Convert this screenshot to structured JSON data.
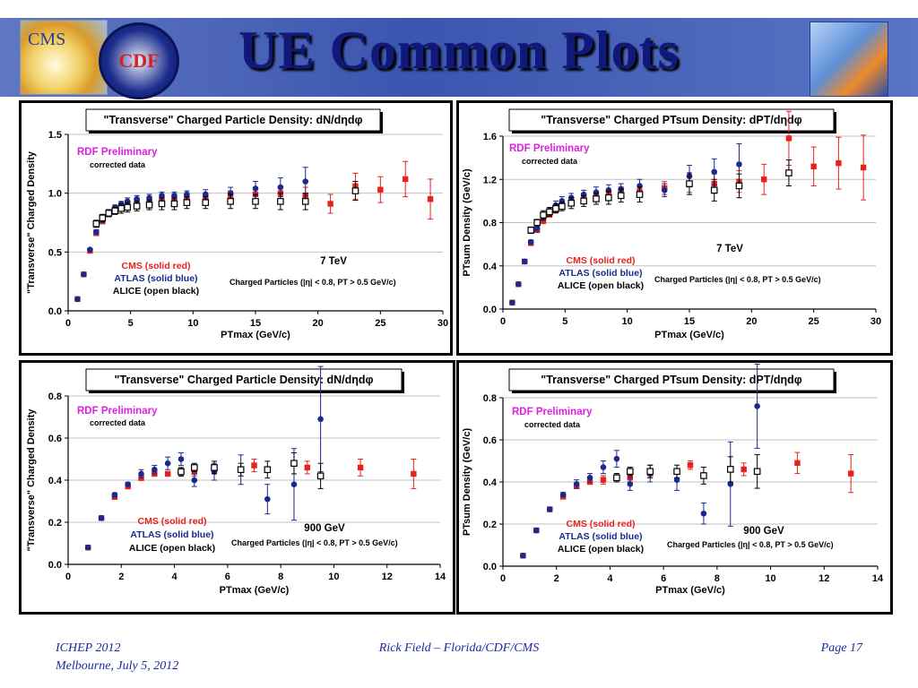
{
  "slide": {
    "title": "UE Common Plots",
    "logos": {
      "cms": "CMS",
      "cdf": "CDF"
    },
    "footer": {
      "left_line1": "ICHEP 2012",
      "left_line2": "Melbourne, July 5, 2012",
      "center": "Rick Field – Florida/CDF/CMS",
      "right": "Page 17"
    }
  },
  "colors": {
    "cms": "#e8211c",
    "atlas": "#1a2a8c",
    "alice": "#000000",
    "rdf": "#e020e0",
    "banner": "#3b55b0",
    "title": "#10197a"
  },
  "chart_data": [
    {
      "type": "scatter",
      "title": "\"Transverse\" Charged Particle Density: dN/dηdφ",
      "xlabel": "PTmax  (GeV/c)",
      "ylabel": "\"Transverse\" Charged Density",
      "xlim": [
        0,
        30
      ],
      "ylim": [
        0,
        1.5
      ],
      "xticks": [
        "0",
        "5",
        "10",
        "15",
        "20",
        "25",
        "30"
      ],
      "yticks": [
        "0.0",
        "0.5",
        "1.0",
        "1.5"
      ],
      "annotations": {
        "rdf": "RDF Preliminary",
        "corrected": "corrected data",
        "energy": "7 TeV",
        "cuts": "Charged Particles (|η| < 0.8, PT > 0.5 GeV/c)"
      },
      "legend": [
        "CMS (solid red)",
        "ATLAS (solid blue)",
        "ALICE (open black)"
      ],
      "series": [
        {
          "name": "CMS",
          "style": "red-square",
          "x": [
            0.75,
            1.25,
            1.75,
            2.25,
            2.75,
            3.25,
            3.75,
            4.25,
            4.75,
            5.5,
            6.5,
            7.5,
            8.5,
            9.5,
            11,
            13,
            15,
            17,
            19,
            21,
            23,
            25,
            27,
            29
          ],
          "y": [
            0.1,
            0.31,
            0.51,
            0.66,
            0.76,
            0.83,
            0.86,
            0.89,
            0.91,
            0.93,
            0.94,
            0.95,
            0.96,
            0.97,
            0.97,
            0.98,
            0.99,
            1.0,
            0.98,
            0.91,
            1.06,
            1.03,
            1.12,
            0.95
          ],
          "err": [
            0.01,
            0.01,
            0.01,
            0.02,
            0.02,
            0.02,
            0.02,
            0.02,
            0.02,
            0.02,
            0.02,
            0.02,
            0.02,
            0.02,
            0.03,
            0.04,
            0.05,
            0.06,
            0.07,
            0.08,
            0.11,
            0.11,
            0.15,
            0.17
          ]
        },
        {
          "name": "ATLAS",
          "style": "blue-circle",
          "x": [
            0.75,
            1.25,
            1.75,
            2.25,
            2.75,
            3.25,
            3.75,
            4.25,
            4.75,
            5.5,
            6.5,
            7.5,
            8.5,
            9.5,
            11,
            13,
            15,
            17,
            19
          ],
          "y": [
            0.1,
            0.31,
            0.52,
            0.67,
            0.77,
            0.84,
            0.88,
            0.91,
            0.93,
            0.95,
            0.96,
            0.98,
            0.98,
            0.99,
            0.99,
            1.0,
            1.04,
            1.05,
            1.1
          ],
          "err": [
            0.01,
            0.01,
            0.01,
            0.02,
            0.02,
            0.02,
            0.02,
            0.02,
            0.03,
            0.03,
            0.03,
            0.03,
            0.03,
            0.03,
            0.04,
            0.05,
            0.06,
            0.08,
            0.12
          ]
        },
        {
          "name": "ALICE",
          "style": "black-open",
          "x": [
            2.25,
            2.75,
            3.25,
            3.75,
            4.25,
            4.75,
            5.5,
            6.5,
            7.5,
            8.5,
            9.5,
            11,
            13,
            15,
            17,
            19,
            23
          ],
          "y": [
            0.74,
            0.79,
            0.83,
            0.85,
            0.87,
            0.88,
            0.89,
            0.9,
            0.91,
            0.91,
            0.92,
            0.92,
            0.93,
            0.93,
            0.93,
            0.93,
            1.02
          ],
          "err": [
            0.03,
            0.03,
            0.03,
            0.03,
            0.04,
            0.04,
            0.04,
            0.04,
            0.05,
            0.05,
            0.05,
            0.05,
            0.06,
            0.06,
            0.07,
            0.07,
            0.08
          ]
        }
      ]
    },
    {
      "type": "scatter",
      "title": "\"Transverse\" Charged PTsum Density: dPT/dηdφ",
      "xlabel": "PTmax  (GeV/c)",
      "ylabel": "PTsum Density (GeV/c)",
      "xlim": [
        0,
        30
      ],
      "ylim": [
        0,
        1.6
      ],
      "xticks": [
        "0",
        "5",
        "10",
        "15",
        "20",
        "25",
        "30"
      ],
      "yticks": [
        "0.0",
        "0.4",
        "0.8",
        "1.2",
        "1.6"
      ],
      "annotations": {
        "rdf": "RDF Preliminary",
        "corrected": "corrected data",
        "energy": "7 TeV",
        "cuts": "Charged Particles (|η| < 0.8, PT > 0.5 GeV/c)"
      },
      "legend": [
        "CMS (solid red)",
        "ATLAS (solid blue)",
        "ALICE (open black)"
      ],
      "series": [
        {
          "name": "CMS",
          "style": "red-square",
          "x": [
            0.75,
            1.25,
            1.75,
            2.25,
            2.75,
            3.25,
            3.75,
            4.25,
            4.75,
            5.5,
            6.5,
            7.5,
            8.5,
            9.5,
            11,
            13,
            15,
            17,
            19,
            21,
            23,
            25,
            27,
            29
          ],
          "y": [
            0.06,
            0.23,
            0.44,
            0.61,
            0.73,
            0.82,
            0.88,
            0.92,
            0.96,
            0.99,
            1.02,
            1.05,
            1.07,
            1.08,
            1.09,
            1.12,
            1.16,
            1.16,
            1.18,
            1.2,
            1.58,
            1.32,
            1.35,
            1.31
          ],
          "err": [
            0.01,
            0.01,
            0.02,
            0.02,
            0.02,
            0.03,
            0.03,
            0.03,
            0.03,
            0.03,
            0.04,
            0.04,
            0.04,
            0.05,
            0.05,
            0.06,
            0.08,
            0.09,
            0.1,
            0.14,
            0.25,
            0.18,
            0.24,
            0.3
          ]
        },
        {
          "name": "ATLAS",
          "style": "blue-circle",
          "x": [
            0.75,
            1.25,
            1.75,
            2.25,
            2.75,
            3.25,
            3.75,
            4.25,
            4.75,
            5.5,
            6.5,
            7.5,
            8.5,
            9.5,
            11,
            13,
            15,
            17,
            19
          ],
          "y": [
            0.06,
            0.23,
            0.44,
            0.62,
            0.75,
            0.85,
            0.91,
            0.96,
            1.0,
            1.03,
            1.06,
            1.08,
            1.1,
            1.11,
            1.14,
            1.1,
            1.23,
            1.27,
            1.34
          ],
          "err": [
            0.01,
            0.01,
            0.02,
            0.02,
            0.03,
            0.03,
            0.03,
            0.04,
            0.04,
            0.04,
            0.04,
            0.05,
            0.05,
            0.05,
            0.06,
            0.06,
            0.1,
            0.12,
            0.19
          ]
        },
        {
          "name": "ALICE",
          "style": "black-open",
          "x": [
            2.25,
            2.75,
            3.25,
            3.75,
            4.25,
            4.75,
            5.5,
            6.5,
            7.5,
            8.5,
            9.5,
            11,
            15,
            17,
            19,
            23
          ],
          "y": [
            0.73,
            0.8,
            0.87,
            0.9,
            0.93,
            0.95,
            0.98,
            1.0,
            1.02,
            1.03,
            1.05,
            1.06,
            1.16,
            1.1,
            1.14,
            1.26
          ],
          "err": [
            0.03,
            0.03,
            0.04,
            0.04,
            0.04,
            0.04,
            0.05,
            0.05,
            0.05,
            0.06,
            0.06,
            0.07,
            0.1,
            0.1,
            0.11,
            0.12
          ]
        }
      ]
    },
    {
      "type": "scatter",
      "title": "\"Transverse\" Charged Particle Density: dN/dηdφ",
      "xlabel": "PTmax  (GeV/c)",
      "ylabel": "\"Transverse\" Charged Density",
      "xlim": [
        0,
        14
      ],
      "ylim": [
        0,
        0.8
      ],
      "xticks": [
        "0",
        "2",
        "4",
        "6",
        "8",
        "10",
        "12",
        "14"
      ],
      "yticks": [
        "0.0",
        "0.2",
        "0.4",
        "0.6",
        "0.8"
      ],
      "annotations": {
        "rdf": "RDF Preliminary",
        "corrected": "corrected data",
        "energy": "900 GeV",
        "cuts": "Charged Particles (|η| < 0.8, PT > 0.5 GeV/c)"
      },
      "legend": [
        "CMS (solid red)",
        "ATLAS (solid blue)",
        "ALICE (open black)"
      ],
      "series": [
        {
          "name": "CMS",
          "style": "red-square",
          "x": [
            0.75,
            1.25,
            1.75,
            2.25,
            2.75,
            3.25,
            3.75,
            4.25,
            4.75,
            5.5,
            7,
            9,
            11,
            13
          ],
          "y": [
            0.08,
            0.22,
            0.32,
            0.37,
            0.41,
            0.43,
            0.43,
            0.44,
            0.44,
            0.45,
            0.47,
            0.46,
            0.46,
            0.43
          ],
          "err": [
            0.005,
            0.01,
            0.01,
            0.01,
            0.01,
            0.01,
            0.01,
            0.02,
            0.02,
            0.02,
            0.03,
            0.03,
            0.04,
            0.07
          ]
        },
        {
          "name": "ATLAS",
          "style": "blue-circle",
          "x": [
            0.75,
            1.25,
            1.75,
            2.25,
            2.75,
            3.25,
            3.75,
            4.25,
            4.75,
            5.5,
            6.5,
            7.5,
            8.5,
            9.5
          ],
          "y": [
            0.08,
            0.22,
            0.33,
            0.38,
            0.43,
            0.45,
            0.48,
            0.5,
            0.4,
            0.44,
            0.45,
            0.31,
            0.38,
            0.69
          ],
          "err": [
            0.005,
            0.01,
            0.01,
            0.01,
            0.02,
            0.02,
            0.03,
            0.03,
            0.03,
            0.04,
            0.07,
            0.07,
            0.17,
            0.25
          ]
        },
        {
          "name": "ALICE",
          "style": "black-open",
          "x": [
            4.25,
            4.75,
            5.5,
            6.5,
            7.5,
            8.5,
            9.5
          ],
          "y": [
            0.44,
            0.46,
            0.46,
            0.45,
            0.45,
            0.48,
            0.42
          ],
          "err": [
            0.02,
            0.02,
            0.03,
            0.03,
            0.04,
            0.05,
            0.06
          ]
        }
      ]
    },
    {
      "type": "scatter",
      "title": "\"Transverse\" Charged PTsum Density: dPT/dηdφ",
      "xlabel": "PTmax  (GeV/c)",
      "ylabel": "PTsum Density (GeV/c)",
      "xlim": [
        0,
        14
      ],
      "ylim": [
        0,
        0.8
      ],
      "xticks": [
        "0",
        "2",
        "4",
        "6",
        "8",
        "10",
        "12",
        "14"
      ],
      "yticks": [
        "0.0",
        "0.2",
        "0.4",
        "0.6",
        "0.8"
      ],
      "annotations": {
        "rdf": "RDF Preliminary",
        "corrected": "corrected data",
        "energy": "900 GeV",
        "cuts": "Charged Particles (|η| < 0.8, PT > 0.5 GeV/c)"
      },
      "legend": [
        "CMS (solid red)",
        "ATLAS (solid blue)",
        "ALICE (open black)"
      ],
      "series": [
        {
          "name": "CMS",
          "style": "red-square",
          "x": [
            0.75,
            1.25,
            1.75,
            2.25,
            2.75,
            3.25,
            3.75,
            4.25,
            4.75,
            5.5,
            7,
            9,
            11,
            13
          ],
          "y": [
            0.05,
            0.17,
            0.27,
            0.33,
            0.38,
            0.4,
            0.41,
            0.42,
            0.42,
            0.44,
            0.48,
            0.46,
            0.49,
            0.44
          ],
          "err": [
            0.005,
            0.01,
            0.01,
            0.01,
            0.01,
            0.01,
            0.02,
            0.02,
            0.02,
            0.02,
            0.02,
            0.03,
            0.05,
            0.09
          ]
        },
        {
          "name": "ATLAS",
          "style": "blue-circle",
          "x": [
            0.75,
            1.25,
            1.75,
            2.25,
            2.75,
            3.25,
            3.75,
            4.25,
            4.75,
            5.5,
            6.5,
            7.5,
            8.5,
            9.5
          ],
          "y": [
            0.05,
            0.17,
            0.27,
            0.34,
            0.39,
            0.42,
            0.47,
            0.51,
            0.39,
            0.44,
            0.41,
            0.25,
            0.39,
            0.76
          ],
          "err": [
            0.005,
            0.01,
            0.01,
            0.01,
            0.02,
            0.02,
            0.03,
            0.04,
            0.03,
            0.04,
            0.05,
            0.05,
            0.2,
            0.2
          ]
        },
        {
          "name": "ALICE",
          "style": "black-open",
          "x": [
            4.25,
            4.75,
            5.5,
            6.5,
            7.5,
            8.5,
            9.5
          ],
          "y": [
            0.42,
            0.45,
            0.45,
            0.45,
            0.43,
            0.46,
            0.45
          ],
          "err": [
            0.02,
            0.02,
            0.03,
            0.03,
            0.04,
            0.06,
            0.08
          ]
        }
      ]
    }
  ]
}
